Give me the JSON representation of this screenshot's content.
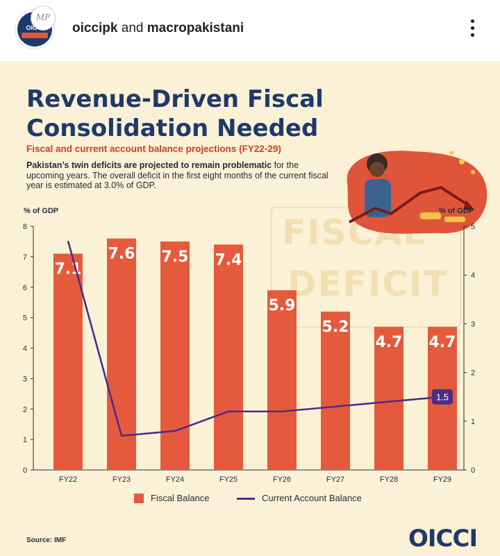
{
  "header": {
    "account1": "oiccipk",
    "conjunction": "and",
    "account2": "macropakistani",
    "avatar_text": "OICCI",
    "avatar2_text": "MP"
  },
  "post": {
    "title_line1": "Revenue-Driven Fiscal",
    "title_line2": "Consolidation Needed",
    "subtitle": "Fiscal and current account balance projections (FY22-29)",
    "desc_bold": "Pakistan’s twin deficits are projected to remain problematic",
    "desc_rest": " for the upcoming years. The overall deficit in the first eight months of the current fiscal year is estimated at 3.0% of GDP.",
    "bg_word1": "FISCAL",
    "bg_word2": "DEFICIT",
    "source": "Source: IMF",
    "logo": "OICCI"
  },
  "colors": {
    "bar": "#e55a3c",
    "line": "#4b2e87",
    "title": "#1e3a6b",
    "subtitle": "#c9412a",
    "background": "#fbf1d6"
  },
  "chart_data": {
    "type": "bar",
    "categories": [
      "FY22",
      "FY23",
      "FY24",
      "FY25",
      "FY26",
      "FY27",
      "FY28",
      "FY29"
    ],
    "ylabel_left": "% of GDP",
    "ylabel_right": "% of GDP",
    "ylim_left": [
      0,
      8
    ],
    "ylim_right": [
      0,
      5
    ],
    "yticks_left": [
      "0",
      "1",
      "2",
      "3",
      "4",
      "5",
      "6",
      "7",
      "8"
    ],
    "yticks_right": [
      "0",
      "1",
      "2",
      "3",
      "4",
      "5"
    ],
    "series": [
      {
        "name": "Fiscal Balance",
        "type": "bar",
        "axis": "left",
        "values": [
          7.1,
          7.6,
          7.5,
          7.4,
          5.9,
          5.2,
          4.7,
          4.7
        ],
        "labels": [
          "7.1",
          "7.6",
          "7.5",
          "7.4",
          "5.9",
          "5.2",
          "4.7",
          "4.7"
        ]
      },
      {
        "name": "Current Account Balance",
        "type": "line",
        "axis": "right",
        "values": [
          4.7,
          0.7,
          0.8,
          1.2,
          1.2,
          1.3,
          1.4,
          1.5
        ],
        "end_label": "1.5"
      }
    ],
    "legend_position": "bottom",
    "grid": false
  }
}
